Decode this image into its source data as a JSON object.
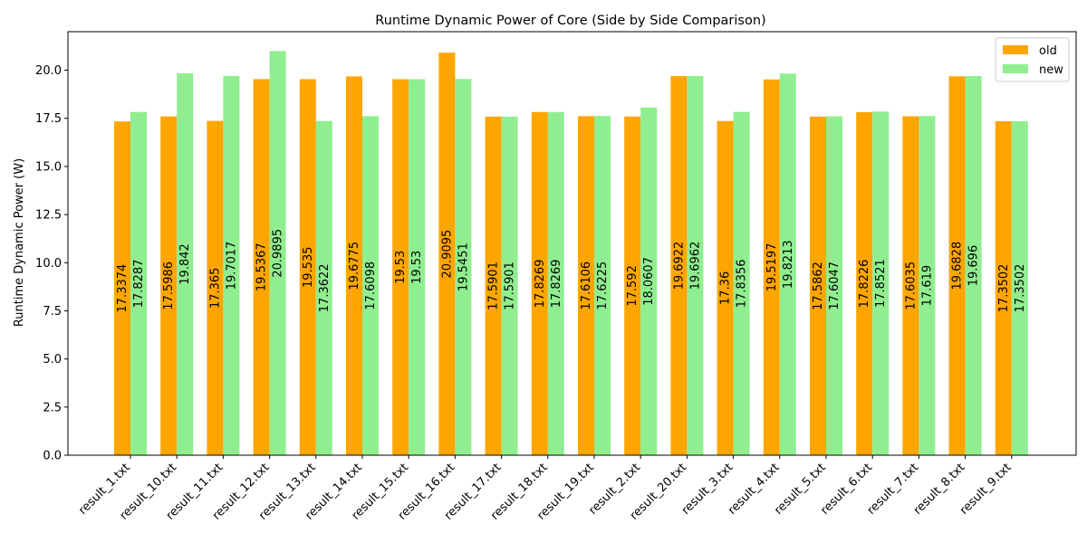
{
  "chart_data": {
    "type": "bar",
    "title": "Runtime Dynamic Power of Core (Side by Side Comparison)",
    "xlabel": "",
    "ylabel": "Runtime Dynamic Power (W)",
    "ylim": [
      0,
      22
    ],
    "yticks": [
      "0.0",
      "2.5",
      "5.0",
      "7.5",
      "10.0",
      "12.5",
      "15.0",
      "17.5",
      "20.0"
    ],
    "grid": false,
    "legend_position": "top-right",
    "categories": [
      "result_1.txt",
      "result_10.txt",
      "result_11.txt",
      "result_12.txt",
      "result_13.txt",
      "result_14.txt",
      "result_15.txt",
      "result_16.txt",
      "result_17.txt",
      "result_18.txt",
      "result_19.txt",
      "result_2.txt",
      "result_20.txt",
      "result_3.txt",
      "result_4.txt",
      "result_5.txt",
      "result_6.txt",
      "result_7.txt",
      "result_8.txt",
      "result_9.txt"
    ],
    "series": [
      {
        "name": "old",
        "color": "#ffa500",
        "values": [
          17.3374,
          17.5986,
          17.365,
          19.5367,
          19.535,
          19.6775,
          19.53,
          20.9095,
          17.5901,
          17.8269,
          17.6106,
          17.592,
          19.6922,
          17.36,
          19.5197,
          17.5862,
          17.8226,
          17.6035,
          19.6828,
          17.3502
        ],
        "labels": [
          "17.3374",
          "17.5986",
          "17.365",
          "19.5367",
          "19.535",
          "19.6775",
          "19.53",
          "20.9095",
          "17.5901",
          "17.8269",
          "17.6106",
          "17.592",
          "19.6922",
          "17.36",
          "19.5197",
          "17.5862",
          "17.8226",
          "17.6035",
          "19.6828",
          "17.3502"
        ]
      },
      {
        "name": "new",
        "color": "#90ee90",
        "values": [
          17.8287,
          19.842,
          19.7017,
          20.9895,
          17.3622,
          17.6098,
          19.53,
          19.5451,
          17.5901,
          17.8269,
          17.6225,
          18.0607,
          19.6962,
          17.8356,
          19.8213,
          17.6047,
          17.8521,
          17.619,
          19.696,
          17.3502
        ],
        "labels": [
          "17.8287",
          "19.842",
          "19.7017",
          "20.9895",
          "17.3622",
          "17.6098",
          "19.53",
          "19.5451",
          "17.5901",
          "17.8269",
          "17.6225",
          "18.0607",
          "19.6962",
          "17.8356",
          "19.8213",
          "17.6047",
          "17.8521",
          "17.619",
          "19.696",
          "17.3502"
        ]
      }
    ]
  }
}
